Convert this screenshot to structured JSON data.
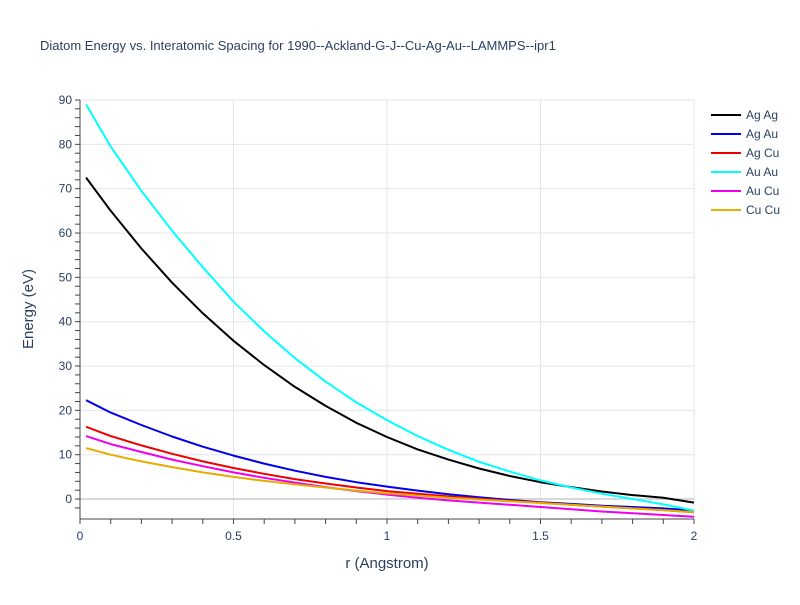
{
  "chart_data": {
    "type": "line",
    "title": "Diatom Energy vs. Interatomic Spacing for 1990--Ackland-G-J--Cu-Ag-Au--LAMMPS--ipr1",
    "xlabel": "r (Angstrom)",
    "ylabel": "Energy (eV)",
    "xlim": [
      0,
      2
    ],
    "ylim": [
      -4.5,
      90
    ],
    "xticks": [
      0,
      0.5,
      1,
      1.5,
      2
    ],
    "xtick_labels": [
      "0",
      "0.5",
      "1",
      "1.5",
      "2"
    ],
    "yticks": [
      0,
      10,
      20,
      30,
      40,
      50,
      60,
      70,
      80,
      90
    ],
    "ytick_labels": [
      "0",
      "10",
      "20",
      "30",
      "40",
      "50",
      "60",
      "70",
      "80",
      "90"
    ],
    "grid": true,
    "legend_position": "right",
    "x": [
      0.02,
      0.1,
      0.2,
      0.3,
      0.4,
      0.5,
      0.6,
      0.7,
      0.8,
      0.9,
      1.0,
      1.1,
      1.2,
      1.3,
      1.4,
      1.5,
      1.6,
      1.7,
      1.8,
      1.9,
      2.0
    ],
    "series": [
      {
        "name": "Ag Ag",
        "color": "#000000",
        "values": [
          72.5,
          65.0,
          56.5,
          48.8,
          41.9,
          35.7,
          30.2,
          25.3,
          21.0,
          17.2,
          14.0,
          11.2,
          8.9,
          6.9,
          5.2,
          3.8,
          2.7,
          1.7,
          0.9,
          0.3,
          -0.8
        ]
      },
      {
        "name": "Ag Au",
        "color": "#0000ee",
        "values": [
          22.3,
          19.5,
          16.7,
          14.1,
          11.8,
          9.8,
          8.0,
          6.4,
          5.0,
          3.8,
          2.8,
          1.9,
          1.1,
          0.4,
          -0.2,
          -0.7,
          -1.1,
          -1.5,
          -1.8,
          -2.1,
          -2.6
        ]
      },
      {
        "name": "Ag Cu",
        "color": "#ee0000",
        "values": [
          16.3,
          14.2,
          12.1,
          10.2,
          8.5,
          7.0,
          5.7,
          4.5,
          3.5,
          2.6,
          1.8,
          1.2,
          0.6,
          0.1,
          -0.4,
          -0.8,
          -1.3,
          -1.7,
          -2.1,
          -2.5,
          -3.0
        ]
      },
      {
        "name": "Au Au",
        "color": "#00ffff",
        "values": [
          89.0,
          79.5,
          69.5,
          60.5,
          52.3,
          44.5,
          37.8,
          31.8,
          26.5,
          21.8,
          17.8,
          14.2,
          11.1,
          8.4,
          6.2,
          4.2,
          2.6,
          1.2,
          0.0,
          -1.2,
          -2.6
        ]
      },
      {
        "name": "Au Cu",
        "color": "#ee00ee",
        "values": [
          14.2,
          12.4,
          10.6,
          8.9,
          7.4,
          6.0,
          4.8,
          3.7,
          2.7,
          1.8,
          1.0,
          0.3,
          -0.3,
          -0.8,
          -1.3,
          -1.8,
          -2.3,
          -2.8,
          -3.2,
          -3.6,
          -4.0
        ]
      },
      {
        "name": "Cu Cu",
        "color": "#e6ac00",
        "values": [
          11.5,
          10.0,
          8.5,
          7.2,
          6.0,
          5.0,
          4.1,
          3.3,
          2.6,
          1.9,
          1.3,
          0.8,
          0.3,
          -0.1,
          -0.5,
          -0.9,
          -1.3,
          -1.7,
          -2.1,
          -2.5,
          -3.0
        ]
      }
    ]
  }
}
